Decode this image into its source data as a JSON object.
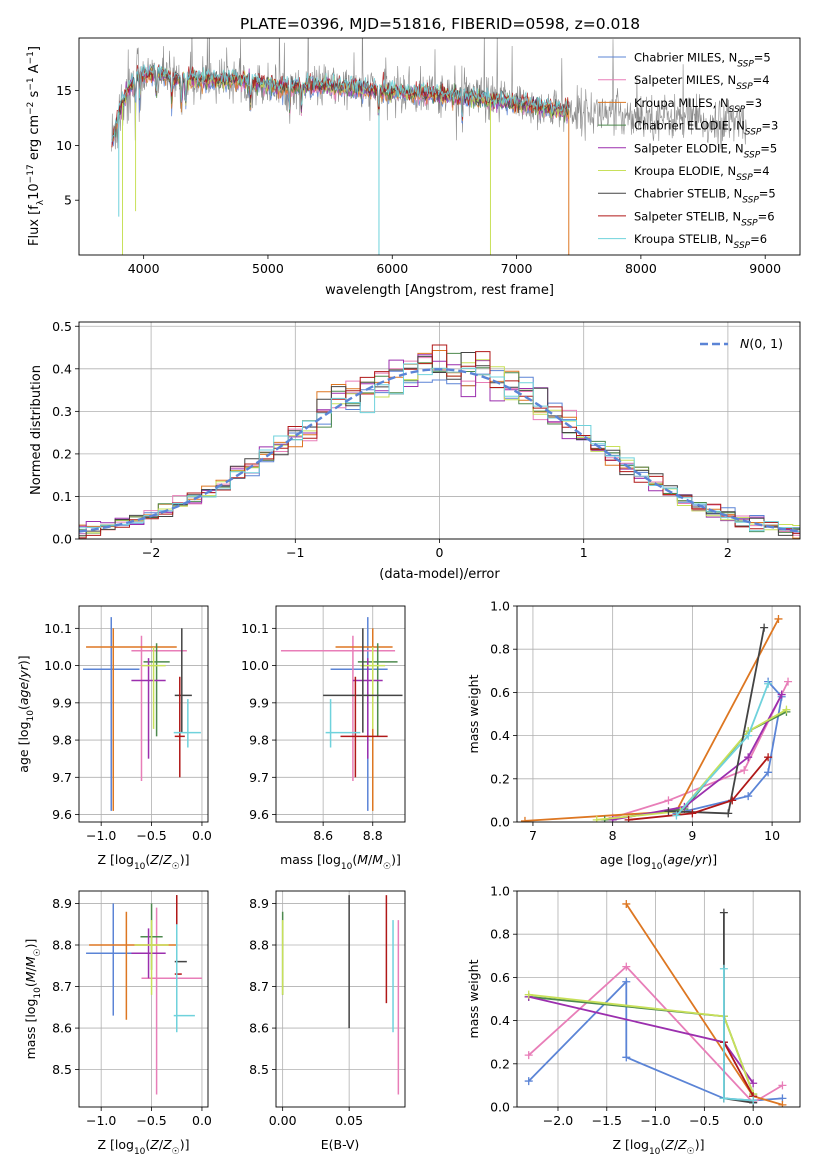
{
  "figure": {
    "title": "PLATE=0396, MJD=51816, FIBERID=0598, z=0.018"
  },
  "colors": {
    "chabrier_miles": "#5b84d6",
    "salpeter_miles": "#e87eb8",
    "kroupa_miles": "#dd7722",
    "chabrier_elodie": "#4d8a4d",
    "salpeter_elodie": "#9b2fae",
    "kroupa_elodie": "#c8e05a",
    "chabrier_stelib": "#444444",
    "salpeter_stelib": "#b01818",
    "kroupa_stelib": "#6fd2dc",
    "data": "#8a8a8a"
  },
  "chart_data": [
    {
      "id": "spectrum",
      "type": "line",
      "xlabel": "wavelength [Angstrom, rest frame]",
      "ylabel": "Flux [f_λ 10^-17 erg cm^-2 s^-1 A^-1]",
      "xlim": [
        3480,
        9280
      ],
      "ylim": [
        0,
        19.8
      ],
      "xticks": [
        4000,
        5000,
        6000,
        7000,
        8000,
        9000
      ],
      "yticks": [
        5,
        10,
        15
      ],
      "grid": false,
      "legend_position": "top-right",
      "legend": [
        {
          "label": "Chabrier MILES",
          "nssp": "5",
          "color_key": "chabrier_miles"
        },
        {
          "label": "Salpeter MILES",
          "nssp": "4",
          "color_key": "salpeter_miles"
        },
        {
          "label": "Kroupa MILES",
          "nssp": "3",
          "color_key": "kroupa_miles"
        },
        {
          "label": "Chabrier ELODIE",
          "nssp": "3",
          "color_key": "chabrier_elodie"
        },
        {
          "label": "Salpeter ELODIE",
          "nssp": "5",
          "color_key": "salpeter_elodie"
        },
        {
          "label": "Kroupa ELODIE",
          "nssp": "4",
          "color_key": "kroupa_elodie"
        },
        {
          "label": "Chabrier STELIB",
          "nssp": "5",
          "color_key": "chabrier_stelib"
        },
        {
          "label": "Salpeter STELIB",
          "nssp": "6",
          "color_key": "salpeter_stelib"
        },
        {
          "label": "Kroupa STELIB",
          "nssp": "6",
          "color_key": "kroupa_stelib"
        }
      ],
      "continuum": [
        [
          3740,
          10
        ],
        [
          3800,
          13
        ],
        [
          3870,
          15
        ],
        [
          3950,
          16.3
        ],
        [
          4100,
          16.6
        ],
        [
          4300,
          16
        ],
        [
          4500,
          16
        ],
        [
          4800,
          15.9
        ],
        [
          5100,
          15.3
        ],
        [
          5400,
          15.5
        ],
        [
          5700,
          15.2
        ],
        [
          6000,
          14.9
        ],
        [
          6300,
          14.7
        ],
        [
          6600,
          14.4
        ],
        [
          7000,
          13.8
        ],
        [
          7300,
          13.3
        ],
        [
          7600,
          13
        ],
        [
          7900,
          12.8
        ],
        [
          8200,
          12.6
        ],
        [
          8500,
          12.4
        ],
        [
          8850,
          12.2
        ]
      ],
      "data_noise": 1.0,
      "absorption_lines": [
        3934,
        3969,
        4102,
        4226,
        4305,
        4340,
        4861,
        5175,
        5270,
        5890,
        6563,
        8498,
        8542,
        8662
      ],
      "dropout_lines": [
        {
          "x": 3800,
          "y": 3.5,
          "color_key": "kroupa_stelib"
        },
        {
          "x": 3830,
          "y": 0,
          "color_key": "kroupa_elodie"
        },
        {
          "x": 3935,
          "y": 4,
          "color_key": "kroupa_elodie"
        },
        {
          "x": 5893,
          "y": 0,
          "color_key": "kroupa_stelib"
        },
        {
          "x": 6790,
          "y": 0,
          "color_key": "kroupa_elodie"
        },
        {
          "x": 7420,
          "y": 0,
          "color_key": "kroupa_miles"
        }
      ],
      "model_end_x": 7420
    },
    {
      "id": "residuals",
      "type": "histogram",
      "xlabel": "(data-model)/error",
      "ylabel": "Normed distribution",
      "xlim": [
        -2.5,
        2.5
      ],
      "ylim": [
        0,
        0.51
      ],
      "xticks": [
        -2,
        -1,
        0,
        1,
        2
      ],
      "yticks": [
        0.0,
        0.1,
        0.2,
        0.3,
        0.4,
        0.5
      ],
      "grid": true,
      "bin_width": 0.1,
      "legend_position": "top-right",
      "reference": {
        "label": "N(0,1)",
        "mean": 0,
        "sigma": 1,
        "color": "#5b84d6",
        "dashed": true
      }
    },
    {
      "id": "age_vs_Z",
      "type": "errorbar",
      "xlabel": "Z [log10(Z/Z☉)]",
      "ylabel": "age [log10(age/yr)]",
      "xlim": [
        -1.22,
        0.06
      ],
      "ylim": [
        9.58,
        10.16
      ],
      "xticks": [
        -1.0,
        -0.5,
        0.0
      ],
      "yticks": [
        9.6,
        9.7,
        9.8,
        9.9,
        10.0,
        10.1
      ],
      "grid": true,
      "points": [
        {
          "x": -0.9,
          "xerr": [
            0.28,
            0.28
          ],
          "y": 9.99,
          "yerr": [
            0.38,
            0.14
          ],
          "color_key": "chabrier_miles"
        },
        {
          "x": -0.6,
          "xerr": [
            0.1,
            0.45
          ],
          "y": 10.04,
          "yerr": [
            0.35,
            0.04
          ],
          "color_key": "salpeter_miles"
        },
        {
          "x": -0.88,
          "xerr": [
            0.27,
            0.63
          ],
          "y": 10.05,
          "yerr": [
            0.44,
            0.05
          ],
          "color_key": "kroupa_miles"
        },
        {
          "x": -0.45,
          "xerr": [
            0.13,
            0.13
          ],
          "y": 10.01,
          "yerr": [
            0.2,
            0.05
          ],
          "color_key": "chabrier_elodie"
        },
        {
          "x": -0.53,
          "xerr": [
            0.17,
            0.17
          ],
          "y": 9.96,
          "yerr": [
            0.21,
            0.06
          ],
          "color_key": "salpeter_elodie"
        },
        {
          "x": -0.48,
          "xerr": [
            0.12,
            0.12
          ],
          "y": 10.0,
          "yerr": [
            0.17,
            0.05
          ],
          "color_key": "kroupa_elodie"
        },
        {
          "x": -0.2,
          "xerr": [
            0.07,
            0.1
          ],
          "y": 9.92,
          "yerr": [
            0.1,
            0.18
          ],
          "color_key": "chabrier_stelib"
        },
        {
          "x": -0.22,
          "xerr": [
            0.05,
            0.05
          ],
          "y": 9.81,
          "yerr": [
            0.11,
            0.16
          ],
          "color_key": "salpeter_stelib"
        },
        {
          "x": -0.14,
          "xerr": [
            0.14,
            0.13
          ],
          "y": 9.82,
          "yerr": [
            0.04,
            0.09
          ],
          "color_key": "kroupa_stelib"
        }
      ]
    },
    {
      "id": "age_vs_mass",
      "type": "errorbar",
      "xlabel": "mass [log10(M/M☉)]",
      "ylabel": "",
      "xlim": [
        8.41,
        8.93
      ],
      "ylim": [
        9.58,
        10.16
      ],
      "xticks": [
        8.6,
        8.8
      ],
      "yticks": [
        9.6,
        9.7,
        9.8,
        9.9,
        10.0,
        10.1
      ],
      "grid": true,
      "points": [
        {
          "x": 8.78,
          "xerr": [
            0.15,
            0.08
          ],
          "y": 9.99,
          "yerr": [
            0.38,
            0.14
          ],
          "color_key": "chabrier_miles"
        },
        {
          "x": 8.72,
          "xerr": [
            0.29,
            0.17
          ],
          "y": 10.04,
          "yerr": [
            0.35,
            0.04
          ],
          "color_key": "salpeter_miles"
        },
        {
          "x": 8.8,
          "xerr": [
            0.15,
            0.08
          ],
          "y": 10.05,
          "yerr": [
            0.44,
            0.05
          ],
          "color_key": "kroupa_miles"
        },
        {
          "x": 8.82,
          "xerr": [
            0.08,
            0.08
          ],
          "y": 10.01,
          "yerr": [
            0.2,
            0.05
          ],
          "color_key": "chabrier_elodie"
        },
        {
          "x": 8.78,
          "xerr": [
            0.06,
            0.06
          ],
          "y": 9.96,
          "yerr": [
            0.21,
            0.06
          ],
          "color_key": "salpeter_elodie"
        },
        {
          "x": 8.8,
          "xerr": [
            0.05,
            0.05
          ],
          "y": 10.0,
          "yerr": [
            0.17,
            0.05
          ],
          "color_key": "kroupa_elodie"
        },
        {
          "x": 8.76,
          "xerr": [
            0.16,
            0.16
          ],
          "y": 9.92,
          "yerr": [
            0.1,
            0.18
          ],
          "color_key": "chabrier_stelib"
        },
        {
          "x": 8.73,
          "xerr": [
            0.06,
            0.13
          ],
          "y": 9.81,
          "yerr": [
            0.11,
            0.16
          ],
          "color_key": "salpeter_stelib"
        },
        {
          "x": 8.63,
          "xerr": [
            0.02,
            0.12
          ],
          "y": 9.82,
          "yerr": [
            0.04,
            0.09
          ],
          "color_key": "kroupa_stelib"
        }
      ]
    },
    {
      "id": "weight_vs_age",
      "type": "line",
      "xlabel": "age [log10(age/yr)]",
      "ylabel": "mass weight",
      "xlim": [
        6.8,
        10.35
      ],
      "ylim": [
        0,
        1.0
      ],
      "xticks": [
        7,
        8,
        9,
        10
      ],
      "yticks": [
        0.0,
        0.2,
        0.4,
        0.6,
        0.8,
        1.0
      ],
      "grid": true,
      "series": [
        {
          "color_key": "chabrier_miles",
          "x": [
            8.8,
            9.7,
            9.95,
            10.12,
            9.95
          ],
          "y": [
            0.04,
            0.12,
            0.23,
            0.58,
            0.65
          ]
        },
        {
          "color_key": "salpeter_miles",
          "x": [
            8.0,
            8.7,
            9.65,
            10.2
          ],
          "y": [
            0.02,
            0.1,
            0.24,
            0.65
          ]
        },
        {
          "color_key": "kroupa_miles",
          "x": [
            6.9,
            8.8,
            10.08
          ],
          "y": [
            0.005,
            0.05,
            0.94
          ]
        },
        {
          "color_key": "chabrier_elodie",
          "x": [
            7.9,
            8.9,
            9.7,
            10.18
          ],
          "y": [
            0.01,
            0.06,
            0.42,
            0.51
          ]
        },
        {
          "color_key": "salpeter_elodie",
          "x": [
            8.0,
            8.9,
            9.7,
            10.12
          ],
          "y": [
            0.01,
            0.07,
            0.3,
            0.59
          ]
        },
        {
          "color_key": "kroupa_elodie",
          "x": [
            7.8,
            8.85,
            9.7,
            10.18
          ],
          "y": [
            0.01,
            0.05,
            0.42,
            0.52
          ]
        },
        {
          "color_key": "chabrier_stelib",
          "x": [
            8.7,
            9.45,
            9.9
          ],
          "y": [
            0.05,
            0.04,
            0.9
          ]
        },
        {
          "color_key": "salpeter_stelib",
          "x": [
            8.2,
            9.0,
            9.5,
            9.95
          ],
          "y": [
            0.01,
            0.04,
            0.1,
            0.3
          ]
        },
        {
          "color_key": "kroupa_stelib",
          "x": [
            8.8,
            9.7,
            9.95
          ],
          "y": [
            0.03,
            0.4,
            0.64
          ]
        }
      ]
    },
    {
      "id": "mass_vs_Z",
      "type": "errorbar",
      "xlabel": "Z [log10(Z/Z☉)]",
      "ylabel": "mass [log10(M/M☉)]",
      "xlim": [
        -1.22,
        0.06
      ],
      "ylim": [
        8.41,
        8.93
      ],
      "xticks": [
        -1.0,
        -0.5,
        0.0
      ],
      "yticks": [
        8.5,
        8.6,
        8.7,
        8.8,
        8.9
      ],
      "grid": true,
      "points": [
        {
          "x": -0.88,
          "xerr": [
            0.27,
            0.26
          ],
          "y": 8.78,
          "yerr": [
            0.15,
            0.12
          ],
          "color_key": "chabrier_miles"
        },
        {
          "x": -0.45,
          "xerr": [
            0.15,
            0.45
          ],
          "y": 8.72,
          "yerr": [
            0.28,
            0.17
          ],
          "color_key": "salpeter_miles"
        },
        {
          "x": -0.75,
          "xerr": [
            0.37,
            0.5
          ],
          "y": 8.8,
          "yerr": [
            0.18,
            0.08
          ],
          "color_key": "kroupa_miles"
        },
        {
          "x": -0.5,
          "xerr": [
            0.11,
            0.11
          ],
          "y": 8.82,
          "yerr": [
            0.08,
            0.08
          ],
          "color_key": "chabrier_elodie"
        },
        {
          "x": -0.53,
          "xerr": [
            0.17,
            0.17
          ],
          "y": 8.78,
          "yerr": [
            0.06,
            0.06
          ],
          "color_key": "salpeter_elodie"
        },
        {
          "x": -0.5,
          "xerr": [
            0.17,
            0.17
          ],
          "y": 8.8,
          "yerr": [
            0.12,
            0.06
          ],
          "color_key": "kroupa_elodie"
        },
        {
          "x": -0.25,
          "xerr": [
            0.02,
            0.1
          ],
          "y": 8.76,
          "yerr": [
            0.16,
            0.16
          ],
          "color_key": "chabrier_stelib"
        },
        {
          "x": -0.25,
          "xerr": [
            0.02,
            0.05
          ],
          "y": 8.73,
          "yerr": [
            0.07,
            0.19
          ],
          "color_key": "salpeter_stelib"
        },
        {
          "x": -0.25,
          "xerr": [
            0.03,
            0.18
          ],
          "y": 8.63,
          "yerr": [
            0.04,
            0.22
          ],
          "color_key": "kroupa_stelib"
        }
      ]
    },
    {
      "id": "mass_vs_ebv",
      "type": "errorbar",
      "xlabel": "E(B-V)",
      "ylabel": "",
      "xlim": [
        -0.005,
        0.092
      ],
      "ylim": [
        8.41,
        8.93
      ],
      "xticks": [
        0.0,
        0.05
      ],
      "yticks": [
        8.5,
        8.6,
        8.7,
        8.8,
        8.9
      ],
      "grid": true,
      "points": [
        {
          "x": 0.0,
          "xerr": [
            0,
            0
          ],
          "y": 8.78,
          "yerr": [
            0.1,
            0.1
          ],
          "color_key": "chabrier_elodie"
        },
        {
          "x": 0.0,
          "xerr": [
            0,
            0
          ],
          "y": 8.78,
          "yerr": [
            0.1,
            0.08
          ],
          "color_key": "kroupa_elodie"
        },
        {
          "x": 0.05,
          "xerr": [
            0,
            0
          ],
          "y": 8.76,
          "yerr": [
            0.16,
            0.16
          ],
          "color_key": "chabrier_stelib"
        },
        {
          "x": 0.078,
          "xerr": [
            0,
            0
          ],
          "y": 8.79,
          "yerr": [
            0.13,
            0.13
          ],
          "color_key": "salpeter_stelib"
        },
        {
          "x": 0.083,
          "xerr": [
            0,
            0
          ],
          "y": 8.73,
          "yerr": [
            0.14,
            0.13
          ],
          "color_key": "kroupa_stelib"
        },
        {
          "x": 0.087,
          "xerr": [
            0,
            0
          ],
          "y": 8.65,
          "yerr": [
            0.21,
            0.21
          ],
          "color_key": "salpeter_miles"
        }
      ]
    },
    {
      "id": "weight_vs_Z",
      "type": "line",
      "xlabel": "Z [log10(Z/Z☉)]",
      "ylabel": "mass weight",
      "xlim": [
        -2.42,
        0.48
      ],
      "ylim": [
        0,
        1.0
      ],
      "xticks": [
        -2.0,
        -1.5,
        -1.0,
        -0.5,
        0.0
      ],
      "yticks": [
        0.0,
        0.2,
        0.4,
        0.6,
        0.8,
        1.0
      ],
      "grid": true,
      "series": [
        {
          "color_key": "chabrier_miles",
          "x": [
            -2.3,
            -1.3,
            -1.3,
            -0.3,
            0.0,
            0.3
          ],
          "y": [
            0.12,
            0.58,
            0.23,
            0.04,
            0.03,
            0.04
          ]
        },
        {
          "color_key": "salpeter_miles",
          "x": [
            -2.3,
            -1.3,
            0.0,
            0.3
          ],
          "y": [
            0.24,
            0.65,
            0.02,
            0.1
          ]
        },
        {
          "color_key": "kroupa_miles",
          "x": [
            -1.3,
            0.0,
            0.3
          ],
          "y": [
            0.94,
            0.05,
            0.01
          ]
        },
        {
          "color_key": "chabrier_elodie",
          "x": [
            -2.3,
            -0.3,
            0.0
          ],
          "y": [
            0.51,
            0.42,
            0.06
          ]
        },
        {
          "color_key": "salpeter_elodie",
          "x": [
            -2.3,
            -0.3,
            0.0
          ],
          "y": [
            0.51,
            0.3,
            0.11
          ]
        },
        {
          "color_key": "kroupa_elodie",
          "x": [
            -2.3,
            -0.3,
            0.0
          ],
          "y": [
            0.52,
            0.42,
            0.06
          ]
        },
        {
          "color_key": "chabrier_stelib",
          "x": [
            -0.3,
            -0.3,
            0.0
          ],
          "y": [
            0.9,
            0.04,
            0.02
          ]
        },
        {
          "color_key": "salpeter_stelib",
          "x": [
            -0.3,
            0.0
          ],
          "y": [
            0.3,
            0.05
          ]
        },
        {
          "color_key": "kroupa_stelib",
          "x": [
            -0.3,
            -0.3,
            0.0
          ],
          "y": [
            0.64,
            0.04,
            0.03
          ]
        }
      ]
    }
  ]
}
